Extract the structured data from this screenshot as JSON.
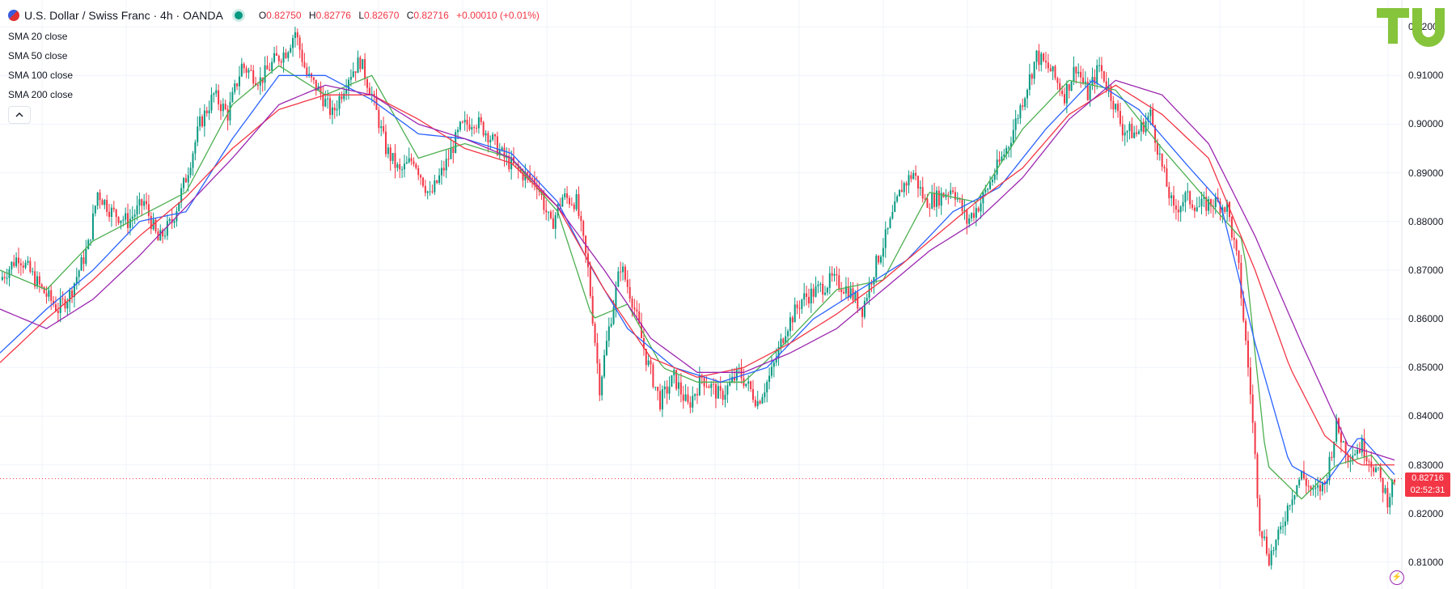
{
  "header": {
    "symbol_title": "U.S. Dollar / Swiss Franc · 4h · OANDA",
    "ohlc": [
      {
        "key": "O",
        "value": "0.82750"
      },
      {
        "key": "H",
        "value": "0.82776"
      },
      {
        "key": "L",
        "value": "0.82670"
      },
      {
        "key": "C",
        "value": "0.82716"
      }
    ],
    "change": "+0.00010 (+0.01%)"
  },
  "indicators": [
    {
      "label": "SMA 20 close",
      "color": "#4caf50"
    },
    {
      "label": "SMA 50 close",
      "color": "#2962ff"
    },
    {
      "label": "SMA 100 close",
      "color": "#f23645"
    },
    {
      "label": "SMA 200 close",
      "color": "#9c27b0"
    }
  ],
  "collapse_icon": "chevron-up-icon",
  "logo_text": "TU",
  "price_axis": {
    "ticks": [
      "0.92000",
      "0.91000",
      "0.90000",
      "0.89000",
      "0.88000",
      "0.87000",
      "0.86000",
      "0.85000",
      "0.84000",
      "0.83000",
      "0.82000",
      "0.81000"
    ]
  },
  "last_price": {
    "value": "0.82716",
    "countdown": "02:52:31"
  },
  "colors": {
    "up": "#089981",
    "down": "#f23645",
    "accent_logo": "#86c43b"
  },
  "chart_data": {
    "type": "candlestick",
    "timeframe": "4h",
    "ylim": [
      0.8045,
      0.9255
    ],
    "last_close": 0.82716,
    "series": [
      {
        "name": "SMA 20 close",
        "color": "#4caf50"
      },
      {
        "name": "SMA 50 close",
        "color": "#2962ff"
      },
      {
        "name": "SMA 100 close",
        "color": "#f23645"
      },
      {
        "name": "SMA 200 close",
        "color": "#9c27b0"
      }
    ],
    "close_path": [
      [
        0,
        0.868
      ],
      [
        8,
        0.873
      ],
      [
        18,
        0.866
      ],
      [
        25,
        0.862
      ],
      [
        30,
        0.865
      ],
      [
        38,
        0.875
      ],
      [
        42,
        0.886
      ],
      [
        48,
        0.882
      ],
      [
        55,
        0.88
      ],
      [
        62,
        0.884
      ],
      [
        68,
        0.876
      ],
      [
        74,
        0.88
      ],
      [
        80,
        0.889
      ],
      [
        86,
        0.9
      ],
      [
        92,
        0.906
      ],
      [
        98,
        0.902
      ],
      [
        104,
        0.912
      ],
      [
        112,
        0.909
      ],
      [
        118,
        0.913
      ],
      [
        123,
        0.915
      ],
      [
        127,
        0.919
      ],
      [
        132,
        0.91
      ],
      [
        137,
        0.907
      ],
      [
        143,
        0.902
      ],
      [
        150,
        0.91
      ],
      [
        155,
        0.913
      ],
      [
        160,
        0.906
      ],
      [
        166,
        0.895
      ],
      [
        172,
        0.89
      ],
      [
        178,
        0.893
      ],
      [
        185,
        0.885
      ],
      [
        192,
        0.892
      ],
      [
        198,
        0.899
      ],
      [
        204,
        0.901
      ],
      [
        210,
        0.898
      ],
      [
        217,
        0.893
      ],
      [
        224,
        0.89
      ],
      [
        231,
        0.888
      ],
      [
        237,
        0.879
      ],
      [
        242,
        0.885
      ],
      [
        248,
        0.884
      ],
      [
        253,
        0.87
      ],
      [
        258,
        0.846
      ],
      [
        262,
        0.858
      ],
      [
        267,
        0.871
      ],
      [
        272,
        0.864
      ],
      [
        278,
        0.852
      ],
      [
        284,
        0.843
      ],
      [
        290,
        0.848
      ],
      [
        296,
        0.842
      ],
      [
        302,
        0.848
      ],
      [
        310,
        0.844
      ],
      [
        318,
        0.849
      ],
      [
        326,
        0.843
      ],
      [
        332,
        0.849
      ],
      [
        338,
        0.858
      ],
      [
        345,
        0.864
      ],
      [
        352,
        0.866
      ],
      [
        358,
        0.868
      ],
      [
        365,
        0.866
      ],
      [
        371,
        0.862
      ],
      [
        376,
        0.87
      ],
      [
        382,
        0.878
      ],
      [
        388,
        0.887
      ],
      [
        393,
        0.89
      ],
      [
        398,
        0.884
      ],
      [
        404,
        0.885
      ],
      [
        410,
        0.887
      ],
      [
        416,
        0.88
      ],
      [
        422,
        0.884
      ],
      [
        428,
        0.89
      ],
      [
        434,
        0.896
      ],
      [
        440,
        0.905
      ],
      [
        446,
        0.914
      ],
      [
        452,
        0.911
      ],
      [
        458,
        0.906
      ],
      [
        463,
        0.912
      ],
      [
        468,
        0.906
      ],
      [
        473,
        0.912
      ],
      [
        478,
        0.906
      ],
      [
        483,
        0.899
      ],
      [
        489,
        0.898
      ],
      [
        495,
        0.902
      ],
      [
        500,
        0.891
      ],
      [
        505,
        0.882
      ],
      [
        510,
        0.885
      ],
      [
        516,
        0.883
      ],
      [
        522,
        0.884
      ],
      [
        528,
        0.883
      ],
      [
        533,
        0.87
      ],
      [
        538,
        0.845
      ],
      [
        542,
        0.818
      ],
      [
        546,
        0.811
      ],
      [
        550,
        0.815
      ],
      [
        555,
        0.823
      ],
      [
        560,
        0.828
      ],
      [
        565,
        0.824
      ],
      [
        570,
        0.826
      ],
      [
        575,
        0.838
      ],
      [
        580,
        0.832
      ],
      [
        586,
        0.834
      ],
      [
        592,
        0.829
      ],
      [
        597,
        0.823
      ],
      [
        600,
        0.8272
      ]
    ],
    "ma_paths": {
      "SMA 20 close": [
        [
          0,
          0.87
        ],
        [
          20,
          0.866
        ],
        [
          40,
          0.876
        ],
        [
          60,
          0.881
        ],
        [
          80,
          0.886
        ],
        [
          100,
          0.904
        ],
        [
          120,
          0.912
        ],
        [
          140,
          0.906
        ],
        [
          160,
          0.91
        ],
        [
          180,
          0.893
        ],
        [
          200,
          0.896
        ],
        [
          220,
          0.893
        ],
        [
          240,
          0.882
        ],
        [
          255,
          0.86
        ],
        [
          270,
          0.863
        ],
        [
          285,
          0.85
        ],
        [
          300,
          0.847
        ],
        [
          320,
          0.847
        ],
        [
          340,
          0.856
        ],
        [
          360,
          0.866
        ],
        [
          380,
          0.868
        ],
        [
          400,
          0.886
        ],
        [
          420,
          0.884
        ],
        [
          440,
          0.899
        ],
        [
          460,
          0.909
        ],
        [
          480,
          0.907
        ],
        [
          500,
          0.895
        ],
        [
          520,
          0.884
        ],
        [
          535,
          0.876
        ],
        [
          545,
          0.83
        ],
        [
          560,
          0.823
        ],
        [
          575,
          0.83
        ],
        [
          590,
          0.832
        ],
        [
          600,
          0.826
        ]
      ],
      "SMA 50 close": [
        [
          0,
          0.853
        ],
        [
          20,
          0.862
        ],
        [
          40,
          0.87
        ],
        [
          60,
          0.88
        ],
        [
          80,
          0.882
        ],
        [
          100,
          0.897
        ],
        [
          120,
          0.91
        ],
        [
          140,
          0.91
        ],
        [
          160,
          0.905
        ],
        [
          180,
          0.898
        ],
        [
          200,
          0.897
        ],
        [
          220,
          0.894
        ],
        [
          240,
          0.884
        ],
        [
          255,
          0.87
        ],
        [
          270,
          0.858
        ],
        [
          290,
          0.85
        ],
        [
          310,
          0.847
        ],
        [
          330,
          0.85
        ],
        [
          350,
          0.86
        ],
        [
          370,
          0.866
        ],
        [
          390,
          0.872
        ],
        [
          410,
          0.882
        ],
        [
          430,
          0.887
        ],
        [
          450,
          0.899
        ],
        [
          470,
          0.909
        ],
        [
          490,
          0.903
        ],
        [
          510,
          0.892
        ],
        [
          525,
          0.884
        ],
        [
          540,
          0.855
        ],
        [
          555,
          0.83
        ],
        [
          570,
          0.826
        ],
        [
          585,
          0.836
        ],
        [
          600,
          0.828
        ]
      ],
      "SMA 100 close": [
        [
          0,
          0.851
        ],
        [
          20,
          0.86
        ],
        [
          40,
          0.868
        ],
        [
          60,
          0.877
        ],
        [
          80,
          0.885
        ],
        [
          100,
          0.895
        ],
        [
          120,
          0.903
        ],
        [
          140,
          0.906
        ],
        [
          160,
          0.906
        ],
        [
          180,
          0.901
        ],
        [
          200,
          0.895
        ],
        [
          220,
          0.892
        ],
        [
          240,
          0.883
        ],
        [
          260,
          0.866
        ],
        [
          280,
          0.852
        ],
        [
          300,
          0.848
        ],
        [
          320,
          0.85
        ],
        [
          340,
          0.855
        ],
        [
          360,
          0.861
        ],
        [
          380,
          0.868
        ],
        [
          400,
          0.876
        ],
        [
          420,
          0.884
        ],
        [
          440,
          0.891
        ],
        [
          460,
          0.902
        ],
        [
          480,
          0.908
        ],
        [
          500,
          0.902
        ],
        [
          520,
          0.893
        ],
        [
          540,
          0.87
        ],
        [
          555,
          0.85
        ],
        [
          570,
          0.836
        ],
        [
          585,
          0.83
        ],
        [
          600,
          0.83
        ]
      ],
      "SMA 200 close": [
        [
          0,
          0.862
        ],
        [
          20,
          0.858
        ],
        [
          40,
          0.864
        ],
        [
          60,
          0.873
        ],
        [
          80,
          0.883
        ],
        [
          100,
          0.893
        ],
        [
          120,
          0.904
        ],
        [
          140,
          0.908
        ],
        [
          160,
          0.906
        ],
        [
          180,
          0.9
        ],
        [
          200,
          0.897
        ],
        [
          220,
          0.893
        ],
        [
          240,
          0.883
        ],
        [
          260,
          0.87
        ],
        [
          280,
          0.856
        ],
        [
          300,
          0.849
        ],
        [
          320,
          0.849
        ],
        [
          340,
          0.853
        ],
        [
          360,
          0.858
        ],
        [
          380,
          0.866
        ],
        [
          400,
          0.874
        ],
        [
          420,
          0.88
        ],
        [
          440,
          0.889
        ],
        [
          460,
          0.901
        ],
        [
          480,
          0.909
        ],
        [
          500,
          0.906
        ],
        [
          520,
          0.896
        ],
        [
          540,
          0.877
        ],
        [
          560,
          0.855
        ],
        [
          580,
          0.834
        ],
        [
          600,
          0.831
        ]
      ]
    }
  }
}
